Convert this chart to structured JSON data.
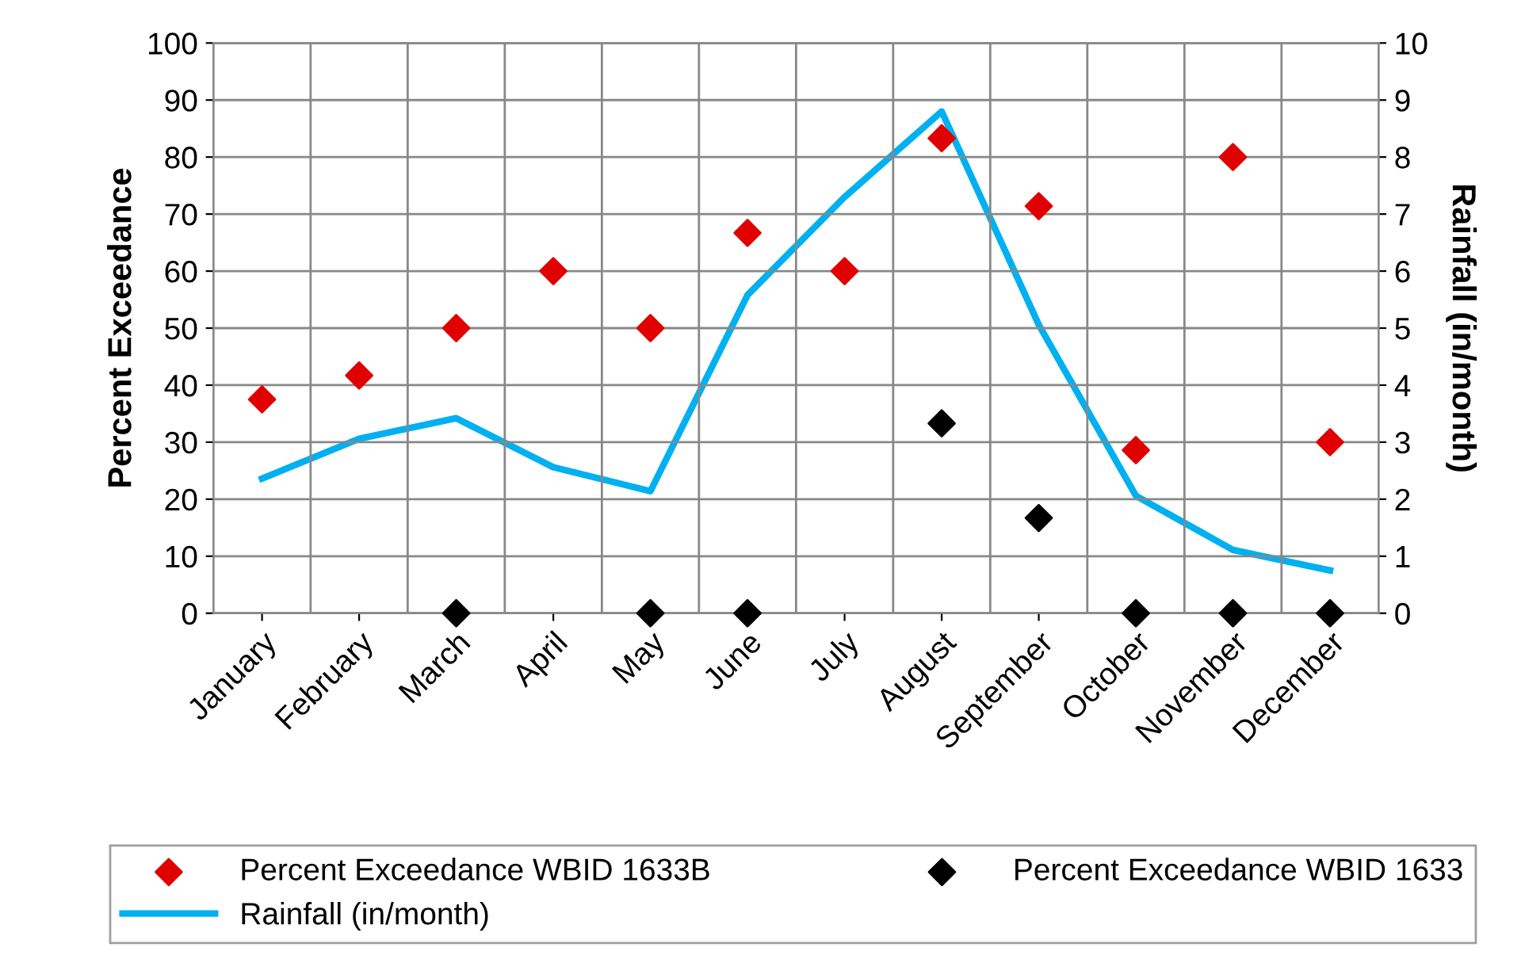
{
  "chart_data": {
    "type": "scatter",
    "categories": [
      "January",
      "February",
      "March",
      "April",
      "May",
      "June",
      "July",
      "August",
      "September",
      "October",
      "November",
      "December"
    ],
    "ylabel": "Percent Exceedance",
    "y2label": "Rainfall (in/month)",
    "ylim": [
      0,
      100
    ],
    "yticks": [
      0,
      10,
      20,
      30,
      40,
      50,
      60,
      70,
      80,
      90,
      100
    ],
    "y2lim": [
      0,
      10
    ],
    "y2ticks": [
      0,
      1,
      2,
      3,
      4,
      5,
      6,
      7,
      8,
      9,
      10
    ],
    "grid": true,
    "legend": "bottom",
    "marker": "diamond",
    "series": [
      {
        "name": "Percent Exceedance WBID 1633B",
        "color": "#e00000",
        "values": [
          37.5,
          41.7,
          50,
          60,
          50,
          66.7,
          60,
          83.3,
          71.4,
          28.6,
          80,
          30
        ]
      },
      {
        "name": "Percent Exceedance WBID 1633",
        "color": "#000000",
        "values": [
          null,
          null,
          0,
          null,
          0,
          0,
          null,
          33.3,
          16.7,
          0,
          0,
          0
        ]
      },
      {
        "name": "Rainfall (in/month)",
        "color": "#00b0f0",
        "type": "line",
        "axis": "y2",
        "marker": "none",
        "values": [
          2.36,
          3.06,
          3.42,
          2.56,
          2.14,
          5.58,
          7.3,
          8.8,
          5.06,
          2.06,
          1.11,
          0.75
        ]
      }
    ]
  }
}
